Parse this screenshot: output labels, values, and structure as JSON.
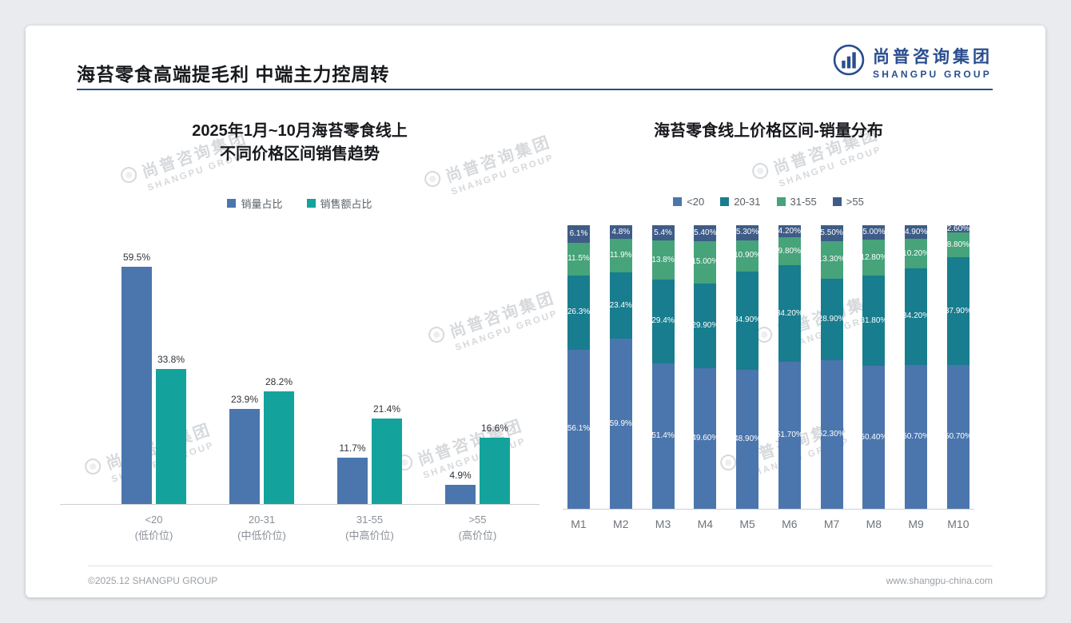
{
  "page": {
    "title": "海苔零食高端提毛利 中端主力控周转",
    "footer_left": "©2025.12 SHANGPU GROUP",
    "footer_right": "www.shangpu-china.com"
  },
  "brand": {
    "name_cn": "尚普咨询集团",
    "name_en": "SHANGPU GROUP"
  },
  "watermark": {
    "name_cn": "尚普咨询集团",
    "name_en": "SHANGPU GROUP"
  },
  "colors": {
    "accent_blue": "#2a4d8f",
    "series_blue": "#4b76ad",
    "series_teal": "#13a39c",
    "stack_blue": "#4b76ad",
    "stack_teal": "#187d8e",
    "stack_green": "#46a37a",
    "stack_navy": "#3e5c87",
    "background": "#e9ebee",
    "card": "#ffffff"
  },
  "chart_data": [
    {
      "type": "bar",
      "stacked": false,
      "title_lines": [
        "2025年1月~10月海苔零食线上",
        "不同价格区间销售趋势"
      ],
      "title": "2025年1月~10月海苔零食线上 不同价格区间销售趋势",
      "categories": [
        "<20",
        "20-31",
        "31-55",
        ">55"
      ],
      "category_subs": [
        "(低价位)",
        "(中低价位)",
        "(中高价位)",
        "(高价位)"
      ],
      "series": [
        {
          "name": "销量占比",
          "color": "#4b76ad",
          "values": [
            59.5,
            23.9,
            11.7,
            4.9
          ],
          "labels": [
            "59.5%",
            "23.9%",
            "11.7%",
            "4.9%"
          ]
        },
        {
          "name": "销售额占比",
          "color": "#13a39c",
          "values": [
            33.8,
            28.2,
            21.4,
            16.6
          ],
          "labels": [
            "33.8%",
            "28.2%",
            "21.4%",
            "16.6%"
          ]
        }
      ],
      "xlabel": "",
      "ylabel": "",
      "ylim": [
        0,
        65
      ],
      "grid": false,
      "legend_position": "top"
    },
    {
      "type": "bar",
      "stacked": true,
      "percent": true,
      "title": "海苔零食线上价格区间-销量分布",
      "categories": [
        "M1",
        "M2",
        "M3",
        "M4",
        "M5",
        "M6",
        "M7",
        "M8",
        "M9",
        "M10"
      ],
      "series": [
        {
          "name": "<20",
          "color": "#4b76ad",
          "values": [
            56.1,
            59.9,
            51.4,
            49.6,
            48.9,
            51.7,
            52.3,
            50.4,
            50.7,
            50.7
          ],
          "labels": [
            "56.1%",
            "59.9%",
            "51.4%",
            "49.60%",
            "48.90%",
            "51.70%",
            "52.30%",
            "50.40%",
            "50.70%",
            "50.70%"
          ]
        },
        {
          "name": "20-31",
          "color": "#187d8e",
          "values": [
            26.3,
            23.4,
            29.4,
            29.9,
            34.9,
            34.2,
            28.9,
            31.8,
            34.2,
            37.9
          ],
          "labels": [
            "26.3%",
            "23.4%",
            "29.4%",
            "29.90%",
            "34.90%",
            "34.20%",
            "28.90%",
            "31.80%",
            "34.20%",
            "37.90%"
          ]
        },
        {
          "name": "31-55",
          "color": "#46a37a",
          "values": [
            11.5,
            11.9,
            13.8,
            15.0,
            10.9,
            9.8,
            13.3,
            12.8,
            10.2,
            8.8
          ],
          "labels": [
            "11.5%",
            "11.9%",
            "13.8%",
            "15.00%",
            "10.90%",
            "9.80%",
            "13.30%",
            "12.80%",
            "10.20%",
            "8.80%"
          ]
        },
        {
          "name": ">55",
          "color": "#3e5c87",
          "values": [
            6.1,
            4.8,
            5.4,
            5.4,
            5.3,
            4.2,
            5.5,
            5.0,
            4.9,
            2.6
          ],
          "labels": [
            "6.1%",
            "4.8%",
            "5.4%",
            "5.40%",
            "5.30%",
            "4.20%",
            "5.50%",
            "5.00%",
            "4.90%",
            "2.60%"
          ]
        }
      ],
      "xlabel": "",
      "ylabel": "",
      "ylim": [
        0,
        100
      ],
      "grid": false,
      "legend_position": "top"
    }
  ]
}
